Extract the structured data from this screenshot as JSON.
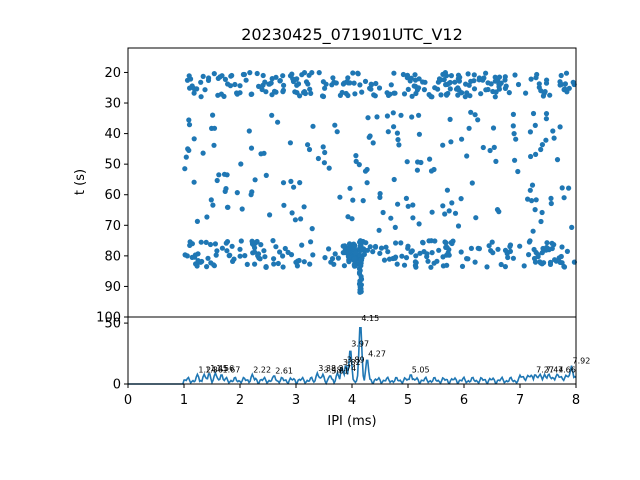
{
  "chart_data": [
    {
      "type": "scatter",
      "title": "20230425_071901UTC_V12",
      "xlabel": "",
      "ylabel": "t (s)",
      "xlim": [
        0,
        8
      ],
      "ylim": [
        100,
        12
      ],
      "y_inverted": true,
      "yticks": [
        20,
        30,
        40,
        50,
        60,
        70,
        80,
        90,
        100
      ],
      "color": "#1f77b4",
      "grid": false,
      "bands": [
        {
          "t_min": 20,
          "t_max": 28,
          "x_min": 1.0,
          "x_max": 8.0,
          "count": 240
        },
        {
          "t_min": 33,
          "t_max": 72,
          "x_min": 1.0,
          "x_max": 8.0,
          "count": 170
        },
        {
          "t_min": 75,
          "t_max": 84,
          "x_min": 1.0,
          "x_max": 8.0,
          "count": 230
        }
      ],
      "clusters": [
        {
          "x": 4.15,
          "t_min": 75,
          "t_max": 92,
          "count": 45
        },
        {
          "x": 3.95,
          "t_min": 76,
          "t_max": 82,
          "count": 30
        },
        {
          "x": 4.05,
          "t_min": 76,
          "t_max": 84,
          "count": 30
        }
      ]
    },
    {
      "type": "line",
      "xlabel": "IPI (ms)",
      "ylabel": "",
      "xlim": [
        0,
        8
      ],
      "ylim": [
        0,
        55
      ],
      "xticks": [
        0,
        1,
        2,
        3,
        4,
        5,
        6,
        7,
        8
      ],
      "yticks": [
        0,
        50
      ],
      "color": "#1f77b4",
      "grid": false,
      "peaks": [
        {
          "x": 1.24,
          "y": 8,
          "label": "1.24"
        },
        {
          "x": 1.36,
          "y": 8,
          "label": "1.36"
        },
        {
          "x": 1.45,
          "y": 9,
          "label": "1.45"
        },
        {
          "x": 1.56,
          "y": 9,
          "label": "1.56"
        },
        {
          "x": 1.67,
          "y": 8,
          "label": "1.67"
        },
        {
          "x": 2.22,
          "y": 8,
          "label": "2.22"
        },
        {
          "x": 2.61,
          "y": 7,
          "label": "2.61"
        },
        {
          "x": 3.38,
          "y": 9,
          "label": "3.38"
        },
        {
          "x": 3.48,
          "y": 8,
          "label": "3.48"
        },
        {
          "x": 3.61,
          "y": 7,
          "label": "3.61"
        },
        {
          "x": 3.74,
          "y": 9,
          "label": "3.74"
        },
        {
          "x": 3.82,
          "y": 14,
          "label": "3.82"
        },
        {
          "x": 3.89,
          "y": 16,
          "label": "3.89"
        },
        {
          "x": 3.97,
          "y": 29,
          "label": "3.97"
        },
        {
          "x": 4.15,
          "y": 50,
          "label": "4.15"
        },
        {
          "x": 4.27,
          "y": 21,
          "label": "4.27"
        },
        {
          "x": 5.05,
          "y": 8,
          "label": "5.05"
        },
        {
          "x": 7.27,
          "y": 8,
          "label": "7.27"
        },
        {
          "x": 7.44,
          "y": 8,
          "label": "7.44"
        },
        {
          "x": 7.66,
          "y": 8,
          "label": "7.66"
        },
        {
          "x": 7.92,
          "y": 15,
          "label": "7.92"
        }
      ]
    }
  ]
}
